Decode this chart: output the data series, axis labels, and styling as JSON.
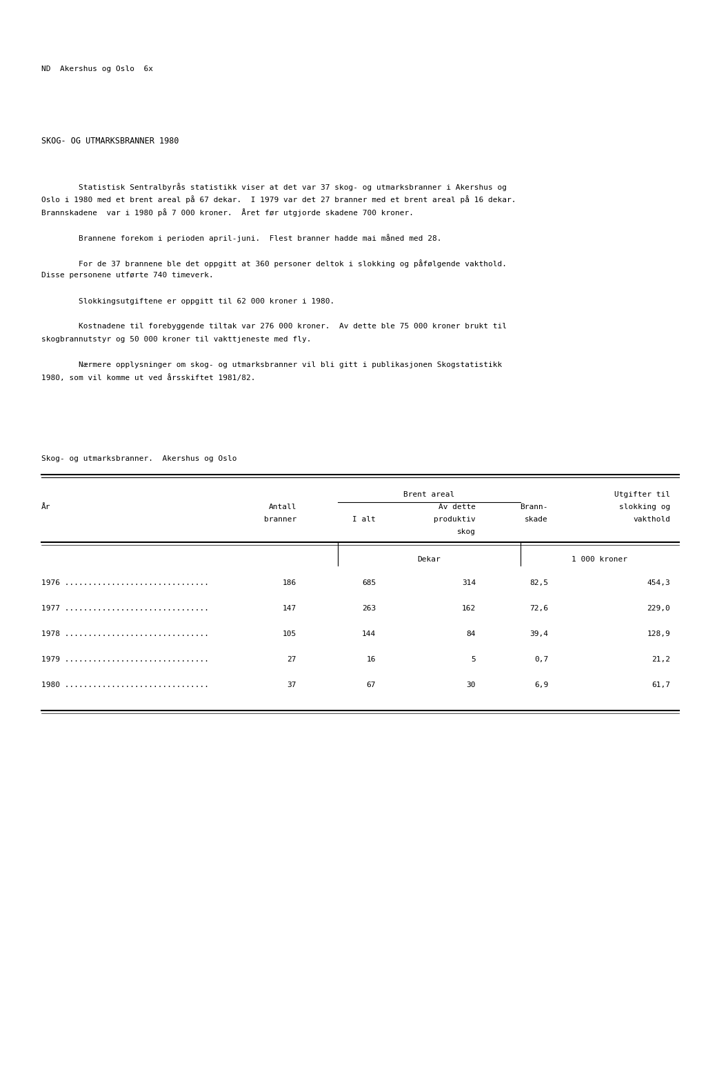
{
  "header_line": "ND  Akershus og Oslo  6x",
  "title": "SKOG- OG UTMARKSBRANNER 1980",
  "para_lines": [
    "        Statistisk Sentralbyrås statistikk viser at det var 37 skog- og utmarksbranner i Akershus og",
    "Oslo i 1980 med et brent areal på 67 dekar.  I 1979 var det 27 branner med et brent areal på 16 dekar.",
    "Brannskadene  var i 1980 på 7 000 kroner.  Året før utgjorde skadene 700 kroner.",
    "        Brannene forekom i perioden april-juni.  Flest branner hadde mai måned med 28.",
    "        For de 37 brannene ble det oppgitt at 360 personer deltok i slokking og påfølgende vakthold.",
    "Disse personene utførte 740 timeverk.",
    "        Slokkingsutgiftene er oppgitt til 62 000 kroner i 1980.",
    "        Kostnadene til forebyggende tiltak var 276 000 kroner.  Av dette ble 75 000 kroner brukt til",
    "skogbrannutstyr og 50 000 kroner til vakttjeneste med fly.",
    "        Nærmere opplysninger om skog- og utmarksbranner vil bli gitt i publikasjonen Skogstatistikk",
    "1980, som vil komme ut ved årsskiftet 1981/82."
  ],
  "para_breaks_after": [
    2,
    3,
    5,
    6,
    8
  ],
  "table_title": "Skog- og utmarksbranner.  Akershus og Oslo",
  "years": [
    "1976",
    "1977",
    "1978",
    "1979",
    "1980"
  ],
  "antall": [
    "186",
    "147",
    "105",
    "27",
    "37"
  ],
  "i_alt": [
    "685",
    "263",
    "144",
    "16",
    "67"
  ],
  "av_dette": [
    "314",
    "162",
    "84",
    "5",
    "30"
  ],
  "brann_skade": [
    "82,5",
    "72,6",
    "39,4",
    "0,7",
    "6,9"
  ],
  "utgifter": [
    "454,3",
    "229,0",
    "128,9",
    "21,2",
    "61,7"
  ],
  "bg_color": "#ffffff",
  "text_color": "#000000"
}
